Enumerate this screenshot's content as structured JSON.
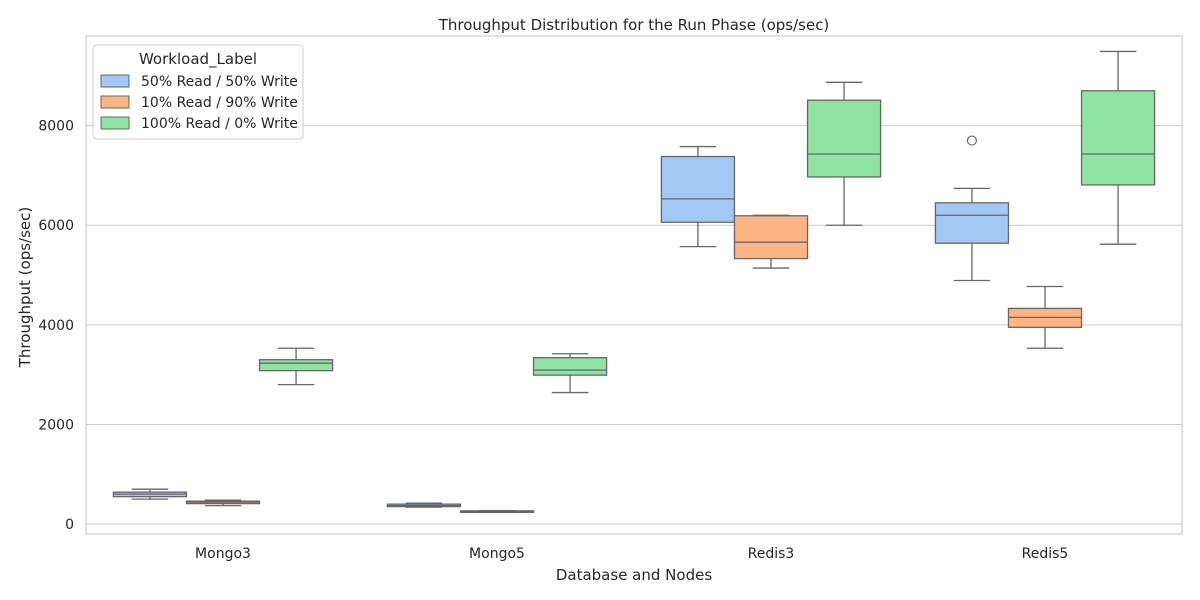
{
  "chart_data": {
    "type": "boxplot",
    "title": "Throughput Distribution for the Run Phase (ops/sec)",
    "xlabel": "Database and Nodes",
    "ylabel": "Throughput (ops/sec)",
    "ylim": [
      -200,
      9800
    ],
    "yticks": [
      0,
      2000,
      4000,
      6000,
      8000
    ],
    "grid": "horizontal",
    "legend": {
      "title": "Workload_Label",
      "placement": "top-left"
    },
    "categories": [
      "Mongo3",
      "Mongo5",
      "Redis3",
      "Redis5"
    ],
    "series": [
      {
        "name": "50% Read / 50% Write",
        "color": "#a1c9f4",
        "boxes": [
          {
            "whislo": 500,
            "q1": 550,
            "med": 600,
            "q3": 640,
            "whishi": 700,
            "fliers": []
          },
          {
            "whislo": 340,
            "q1": 350,
            "med": 370,
            "q3": 400,
            "whishi": 420,
            "fliers": []
          },
          {
            "whislo": 5570,
            "q1": 6060,
            "med": 6530,
            "q3": 7380,
            "whishi": 7580,
            "fliers": []
          },
          {
            "whislo": 4890,
            "q1": 5640,
            "med": 6200,
            "q3": 6450,
            "whishi": 6740,
            "fliers": [
              7700
            ]
          }
        ]
      },
      {
        "name": "10% Read / 90% Write",
        "color": "#ffb482",
        "boxes": [
          {
            "whislo": 370,
            "q1": 410,
            "med": 440,
            "q3": 460,
            "whishi": 480,
            "fliers": []
          },
          {
            "whislo": 240,
            "q1": 245,
            "med": 255,
            "q3": 265,
            "whishi": 270,
            "fliers": []
          },
          {
            "whislo": 5140,
            "q1": 5330,
            "med": 5660,
            "q3": 6190,
            "whishi": 6200,
            "fliers": []
          },
          {
            "whislo": 3530,
            "q1": 3950,
            "med": 4150,
            "q3": 4330,
            "whishi": 4770,
            "fliers": []
          }
        ]
      },
      {
        "name": "100% Read / 0% Write",
        "color": "#8de5a1",
        "boxes": [
          {
            "whislo": 2800,
            "q1": 3080,
            "med": 3230,
            "q3": 3300,
            "whishi": 3530,
            "fliers": []
          },
          {
            "whislo": 2640,
            "q1": 2990,
            "med": 3090,
            "q3": 3340,
            "whishi": 3420,
            "fliers": []
          },
          {
            "whislo": 6000,
            "q1": 6970,
            "med": 7430,
            "q3": 8510,
            "whishi": 8870,
            "fliers": []
          },
          {
            "whislo": 5620,
            "q1": 6810,
            "med": 7430,
            "q3": 8700,
            "whishi": 9490,
            "fliers": []
          }
        ]
      }
    ]
  }
}
